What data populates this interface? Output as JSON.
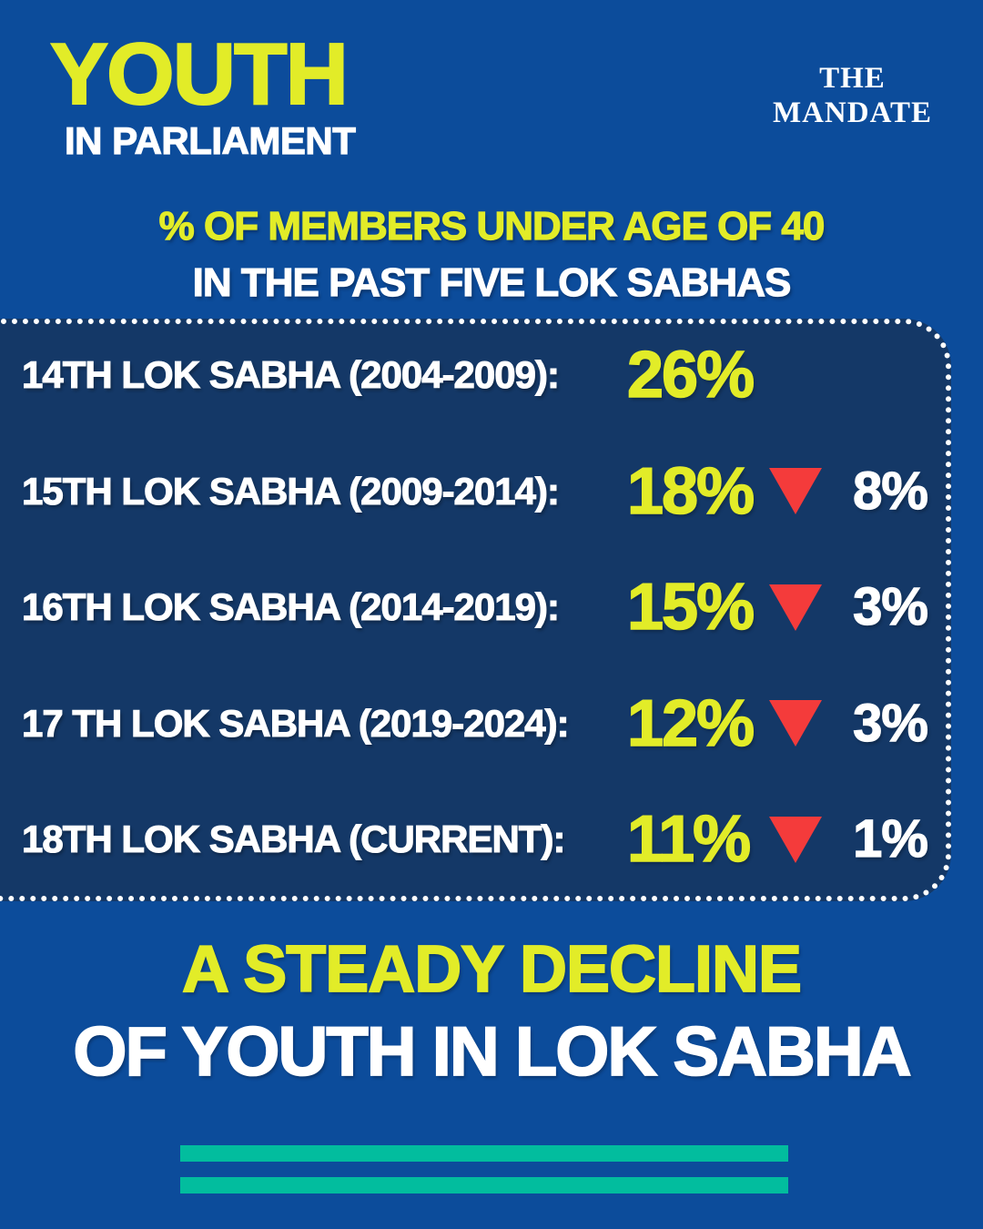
{
  "page": {
    "bg_color": "#0c4c9b",
    "box_bg_color": "#143867",
    "accent_yellow": "#e2ec28",
    "accent_red": "#f43b3b",
    "accent_teal": "#02bd9e",
    "text_white": "#ffffff"
  },
  "header": {
    "title": "YOUTH",
    "subtitle": "IN PARLIAMENT",
    "logo_line1": "THE",
    "logo_line2": "MANDATE"
  },
  "intro": {
    "line1": "% OF MEMBERS UNDER AGE OF 40",
    "line2": "IN THE PAST FIVE LOK SABHAS"
  },
  "rows": [
    {
      "label": "14TH LOK SABHA (2004-2009):",
      "value": "26%",
      "delta": ""
    },
    {
      "label": "15TH LOK SABHA (2009-2014):",
      "value": "18%",
      "delta": "8%"
    },
    {
      "label": "16TH LOK SABHA (2014-2019):",
      "value": "15%",
      "delta": "3%"
    },
    {
      "label": "17 TH LOK SABHA (2019-2024):",
      "value": "12%",
      "delta": "3%"
    },
    {
      "label": "18TH LOK SABHA (CURRENT):",
      "value": "11%",
      "delta": "1%"
    }
  ],
  "footer": {
    "line1": "A STEADY DECLINE",
    "line2": "OF YOUTH IN LOK SABHA"
  },
  "chart_data": {
    "type": "table",
    "title": "% of members under age of 40 in the past five Lok Sabhas",
    "categories": [
      "14th Lok Sabha (2004-2009)",
      "15th Lok Sabha (2009-2014)",
      "16th Lok Sabha (2014-2019)",
      "17th Lok Sabha (2019-2024)",
      "18th Lok Sabha (Current)"
    ],
    "series": [
      {
        "name": "Percent of members under 40",
        "values": [
          26,
          18,
          15,
          12,
          11
        ]
      },
      {
        "name": "Decline vs previous Lok Sabha (percentage points)",
        "values": [
          null,
          8,
          3,
          3,
          1
        ]
      }
    ],
    "annotations": [
      "A steady decline of youth in Lok Sabha"
    ],
    "value_unit": "%"
  }
}
